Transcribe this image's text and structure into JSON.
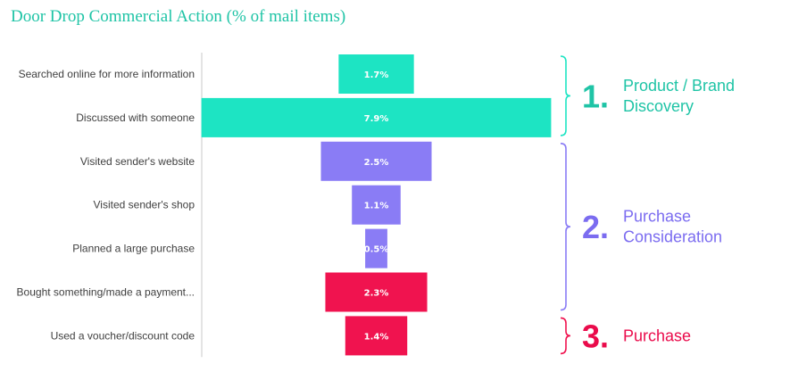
{
  "chart_data": {
    "type": "bar",
    "orientation": "horizontal-funnel",
    "title": "Door Drop Commercial Action (% of mail items)",
    "categories": [
      "Searched online for more information",
      "Discussed with someone",
      "Visited sender's website",
      "Visited sender's shop",
      "Planned a large  purchase",
      "Bought something/made a payment...",
      "Used a voucher/discount code"
    ],
    "values": [
      1.7,
      7.9,
      2.5,
      1.1,
      0.5,
      2.3,
      1.4
    ],
    "value_labels": [
      "1.7%",
      "7.9%",
      "2.5%",
      "1.1%",
      "0.5%",
      "2.3%",
      "1.4%"
    ],
    "value_unit": "%",
    "stage_of_bar": [
      0,
      0,
      1,
      1,
      1,
      2,
      2
    ],
    "stages": [
      {
        "number": "1.",
        "label_lines": [
          "Product / Brand",
          "Discovery"
        ],
        "color": "#1de4c3"
      },
      {
        "number": "2.",
        "label_lines": [
          "Purchase",
          "Consideration"
        ],
        "color": "#8a7cf5"
      },
      {
        "number": "3.",
        "label_lines": [
          "Purchase"
        ],
        "color": "#f0134f"
      }
    ],
    "stage_text_colors": [
      "#1fc4a6",
      "#7b6cf0",
      "#ea0b4b"
    ],
    "grid": false
  }
}
